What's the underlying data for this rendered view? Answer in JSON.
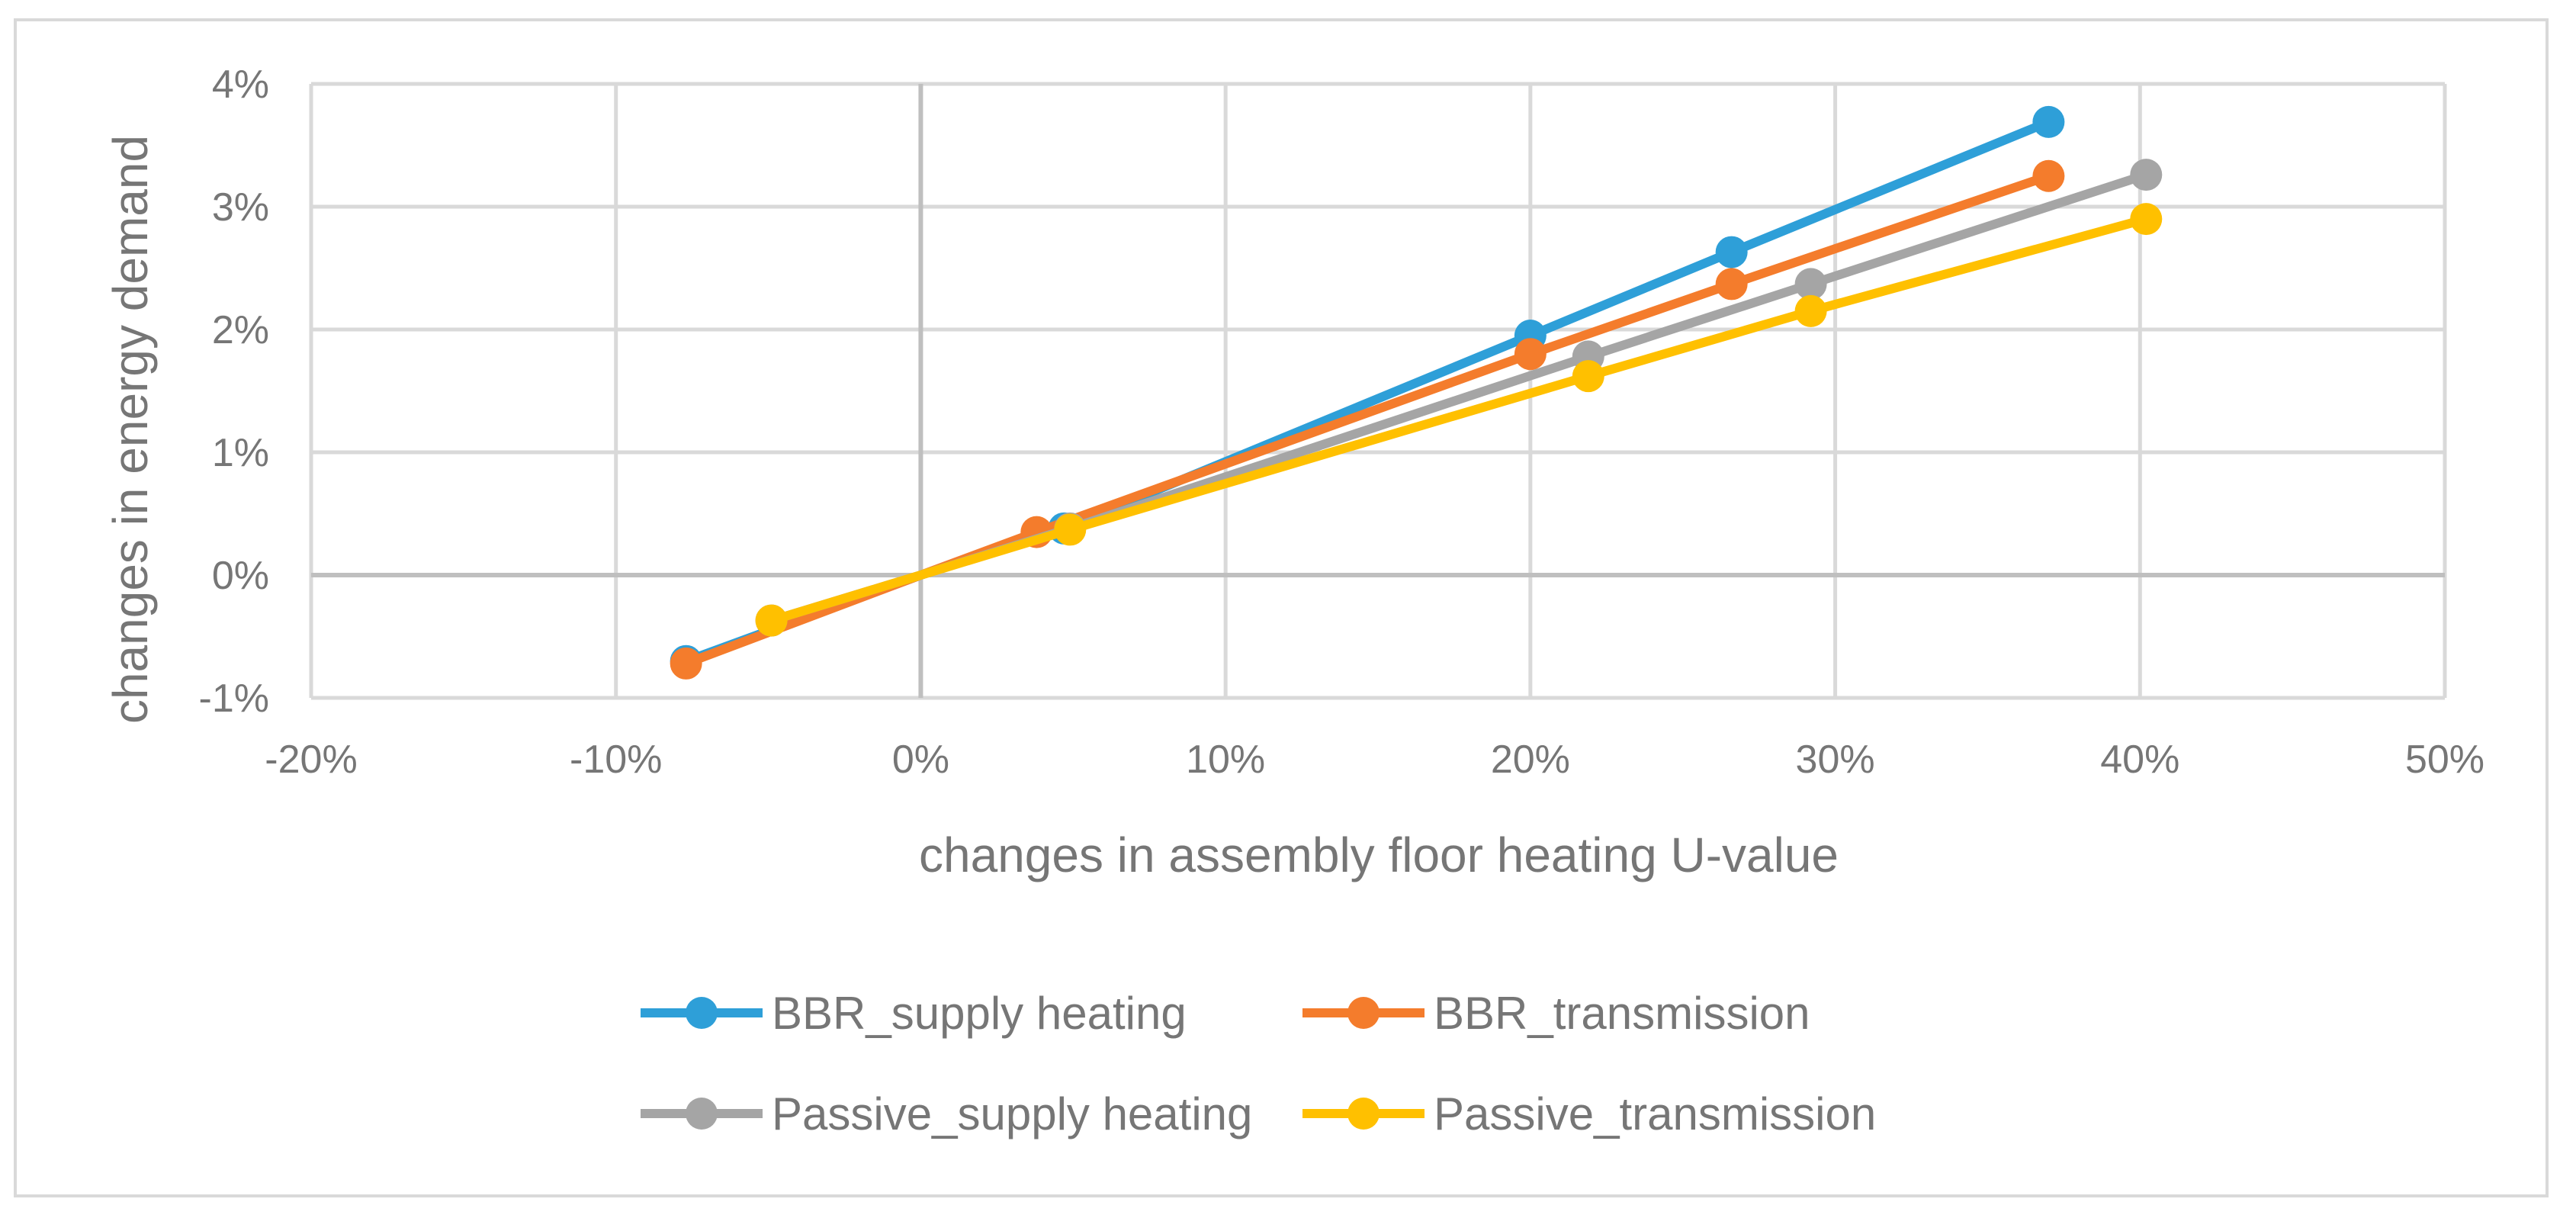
{
  "chart_data": {
    "type": "line",
    "title": "",
    "xlabel": "changes in assembly floor heating U-value",
    "ylabel": "changes in energy demand",
    "xlim": [
      -20,
      50
    ],
    "ylim": [
      -1,
      4
    ],
    "x_ticks": [
      -20,
      -10,
      0,
      10,
      20,
      30,
      40,
      50
    ],
    "y_ticks": [
      -1,
      0,
      1,
      2,
      3,
      4
    ],
    "x_tick_labels": [
      "-20%",
      "-10%",
      "0%",
      "10%",
      "20%",
      "30%",
      "40%",
      "50%"
    ],
    "y_tick_labels": [
      "-1%",
      "0%",
      "1%",
      "2%",
      "3%",
      "4%"
    ],
    "grid": true,
    "legend_position": "bottom",
    "series": [
      {
        "name": "BBR_supply heating",
        "color": "#2e9fd8",
        "x": [
          -7.7,
          4.7,
          20.0,
          26.6,
          37.0
        ],
        "y": [
          -0.7,
          0.38,
          1.95,
          2.63,
          3.69
        ]
      },
      {
        "name": "BBR_transmission",
        "color": "#f47c2c",
        "x": [
          -7.7,
          3.8,
          20.0,
          26.6,
          37.0
        ],
        "y": [
          -0.72,
          0.35,
          1.8,
          2.37,
          3.25
        ]
      },
      {
        "name": "Passive_supply heating",
        "color": "#a5a5a5",
        "x": [
          -4.9,
          4.9,
          21.9,
          29.2,
          40.2
        ],
        "y": [
          -0.37,
          0.38,
          1.78,
          2.37,
          3.26
        ]
      },
      {
        "name": "Passive_transmission",
        "color": "#ffc000",
        "x": [
          -4.9,
          4.9,
          21.9,
          29.2,
          40.2
        ],
        "y": [
          -0.37,
          0.37,
          1.62,
          2.15,
          2.9
        ]
      }
    ]
  }
}
